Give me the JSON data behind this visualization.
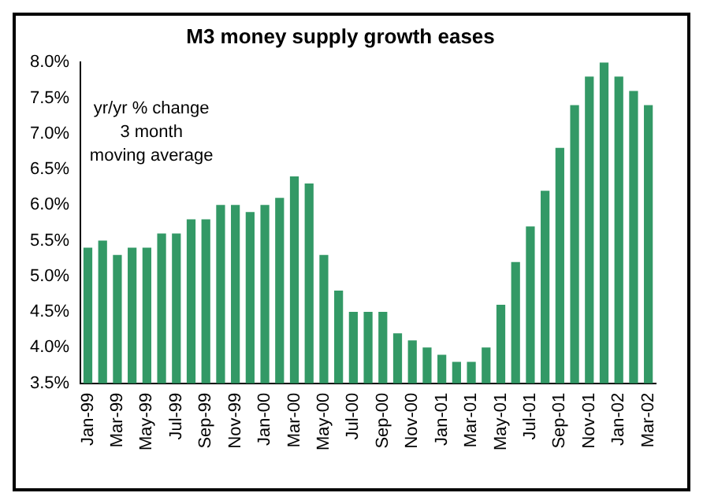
{
  "chart_data": {
    "type": "bar",
    "title": "M3 money supply growth eases",
    "categories": [
      "Jan-99",
      null,
      "Mar-99",
      null,
      "May-99",
      null,
      "Jul-99",
      null,
      "Sep-99",
      null,
      "Nov-99",
      null,
      "Jan-00",
      null,
      "Mar-00",
      null,
      "May-00",
      null,
      "Jul-00",
      null,
      "Sep-00",
      null,
      "Nov-00",
      null,
      "Jan-01",
      null,
      "Mar-01",
      null,
      "May-01",
      null,
      "Jul-01",
      null,
      "Sep-01",
      null,
      "Nov-01",
      null,
      "Jan-02",
      null,
      "Mar-02"
    ],
    "values": [
      5.4,
      5.5,
      5.3,
      5.4,
      5.4,
      5.6,
      5.6,
      5.8,
      5.8,
      6.0,
      6.0,
      5.9,
      6.0,
      6.1,
      6.4,
      6.3,
      5.3,
      4.8,
      4.5,
      4.5,
      4.5,
      4.2,
      4.1,
      4.0,
      3.9,
      3.8,
      3.8,
      4.0,
      4.6,
      5.2,
      5.7,
      6.2,
      6.8,
      7.4,
      7.8,
      8.0,
      7.8,
      7.6,
      7.4
    ],
    "color": "#339966",
    "ylim": [
      3.5,
      8.0
    ],
    "yticks": [
      {
        "value": 3.5,
        "label": "3.5%"
      },
      {
        "value": 4.0,
        "label": "4.0%"
      },
      {
        "value": 4.5,
        "label": "4.5%"
      },
      {
        "value": 5.0,
        "label": "5.0%"
      },
      {
        "value": 5.5,
        "label": "5.5%"
      },
      {
        "value": 6.0,
        "label": "6.0%"
      },
      {
        "value": 6.5,
        "label": "6.5%"
      },
      {
        "value": 7.0,
        "label": "7.0%"
      },
      {
        "value": 7.5,
        "label": "7.5%"
      },
      {
        "value": 8.0,
        "label": "8.0%"
      }
    ],
    "annotations": [
      "yr/yr % change\n3 month\nmoving average"
    ],
    "grid": false,
    "legend": false
  }
}
